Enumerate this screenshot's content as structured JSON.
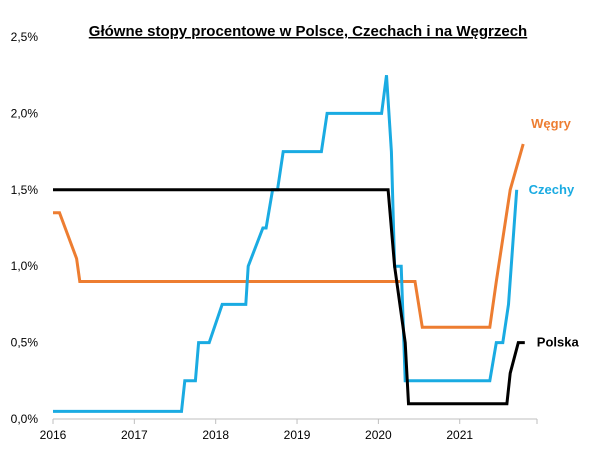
{
  "chart_data": {
    "type": "line",
    "title": "Główne stopy procentowe w Polsce, Czechach i na Węgrzech",
    "xlabel": "",
    "ylabel": "",
    "xlim": [
      2016,
      2021.95
    ],
    "ylim": [
      0,
      2.5
    ],
    "x_ticks": [
      2016,
      2017,
      2018,
      2019,
      2020,
      2021
    ],
    "x_tick_labels": [
      "2016",
      "2017",
      "2018",
      "2019",
      "2020",
      "2021"
    ],
    "y_ticks": [
      0,
      0.5,
      1.0,
      1.5,
      2.0,
      2.5
    ],
    "y_tick_labels": [
      "0,0%",
      "0,5%",
      "1,0%",
      "1,5%",
      "2,0%",
      "2,5%"
    ],
    "grid": false,
    "legend": "labels at line ends",
    "series": [
      {
        "name": "Polska",
        "color": "#000000",
        "x": [
          2016.0,
          2020.12,
          2020.2,
          2020.33,
          2020.37,
          2021.58,
          2021.62,
          2021.72,
          2021.8
        ],
        "y": [
          1.5,
          1.5,
          1.0,
          0.5,
          0.1,
          0.1,
          0.3,
          0.5,
          0.5
        ]
      },
      {
        "name": "Czechy",
        "color": "#1aabe2",
        "x": [
          2016.0,
          2017.58,
          2017.62,
          2017.75,
          2017.79,
          2017.88,
          2017.92,
          2018.08,
          2018.12,
          2018.37,
          2018.4,
          2018.58,
          2018.62,
          2018.7,
          2018.76,
          2018.83,
          2018.87,
          2019.3,
          2019.37,
          2020.04,
          2020.1,
          2020.16,
          2020.2,
          2020.28,
          2020.33,
          2021.37,
          2021.45,
          2021.53,
          2021.6,
          2021.7
        ],
        "y": [
          0.05,
          0.05,
          0.25,
          0.25,
          0.5,
          0.5,
          0.5,
          0.75,
          0.75,
          0.75,
          1.0,
          1.25,
          1.25,
          1.5,
          1.5,
          1.75,
          1.75,
          1.75,
          2.0,
          2.0,
          2.25,
          1.75,
          1.0,
          1.0,
          0.25,
          0.25,
          0.5,
          0.5,
          0.75,
          1.5
        ]
      },
      {
        "name": "Węgry",
        "color": "#ed7d31",
        "x": [
          2016.0,
          2016.08,
          2016.29,
          2016.33,
          2020.37,
          2020.45,
          2020.54,
          2021.37,
          2021.45,
          2021.62,
          2021.78
        ],
        "y": [
          1.35,
          1.35,
          1.05,
          0.9,
          0.9,
          0.9,
          0.6,
          0.6,
          0.9,
          1.5,
          1.8
        ]
      }
    ]
  }
}
